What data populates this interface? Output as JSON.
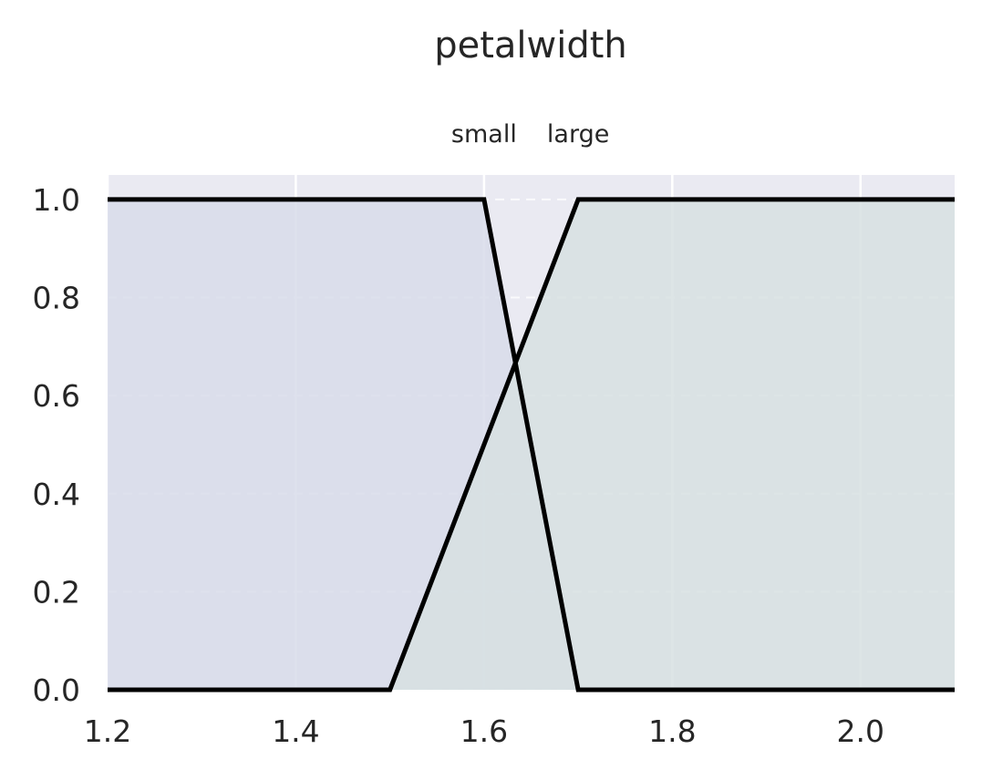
{
  "chart_data": {
    "type": "line",
    "title": "petalwidth",
    "xlim": [
      1.2,
      2.1
    ],
    "ylim": [
      0.0,
      1.05
    ],
    "x_ticks": [
      "1.2",
      "1.4",
      "1.6",
      "1.8",
      "2.0"
    ],
    "y_ticks": [
      "0.0",
      "0.2",
      "0.4",
      "0.6",
      "0.8",
      "1.0"
    ],
    "grid": true,
    "set_labels": [
      {
        "text": "small",
        "x": 1.6
      },
      {
        "text": "large",
        "x": 1.7
      }
    ],
    "series": [
      {
        "name": "small",
        "fill": "#d8dcea",
        "points": [
          [
            1.2,
            1.0
          ],
          [
            1.6,
            1.0
          ],
          [
            1.7,
            0.0
          ],
          [
            2.1,
            0.0
          ]
        ]
      },
      {
        "name": "large",
        "fill": "#d7e1e2",
        "points": [
          [
            1.2,
            0.0
          ],
          [
            1.5,
            0.0
          ],
          [
            1.7,
            1.0
          ],
          [
            2.1,
            1.0
          ]
        ]
      }
    ],
    "background_color": "#eaeaf2",
    "line_color": "#000000"
  }
}
